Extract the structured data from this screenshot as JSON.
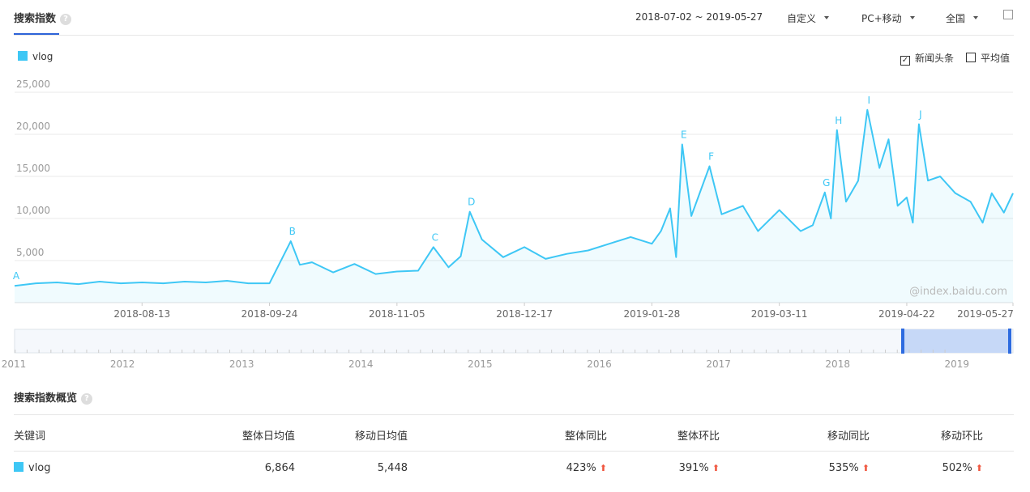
{
  "header": {
    "tab": "搜索指数",
    "date_range": "2018-07-02 ~ 2019-05-27",
    "mode": "自定义",
    "device": "PC+移动",
    "region": "全国"
  },
  "options": {
    "news": "新闻头条",
    "average": "平均值"
  },
  "chart_data": {
    "type": "line",
    "x": [
      "2018-07-02",
      "2018-07-09",
      "2018-07-16",
      "2018-07-23",
      "2018-07-30",
      "2018-08-06",
      "2018-08-13",
      "2018-08-20",
      "2018-08-27",
      "2018-09-03",
      "2018-09-10",
      "2018-09-17",
      "2018-09-24",
      "2018-10-01",
      "2018-10-04",
      "2018-10-08",
      "2018-10-15",
      "2018-10-22",
      "2018-10-29",
      "2018-11-05",
      "2018-11-12",
      "2018-11-17",
      "2018-11-22",
      "2018-11-26",
      "2018-11-29",
      "2018-12-03",
      "2018-12-10",
      "2018-12-17",
      "2018-12-24",
      "2018-12-31",
      "2019-01-07",
      "2019-01-14",
      "2019-01-21",
      "2019-01-28",
      "2019-01-31",
      "2019-02-03",
      "2019-02-05",
      "2019-02-07",
      "2019-02-10",
      "2019-02-16",
      "2019-02-20",
      "2019-02-27",
      "2019-03-04",
      "2019-03-11",
      "2019-03-18",
      "2019-03-22",
      "2019-03-26",
      "2019-03-28",
      "2019-03-30",
      "2019-04-02",
      "2019-04-06",
      "2019-04-09",
      "2019-04-13",
      "2019-04-16",
      "2019-04-19",
      "2019-04-22",
      "2019-04-24",
      "2019-04-26",
      "2019-04-29",
      "2019-05-03",
      "2019-05-08",
      "2019-05-13",
      "2019-05-17",
      "2019-05-20",
      "2019-05-24",
      "2019-05-27"
    ],
    "series": [
      {
        "name": "vlog",
        "color": "#3ec7f5",
        "values": [
          2000,
          2300,
          2400,
          2200,
          2500,
          2300,
          2400,
          2300,
          2500,
          2400,
          2600,
          2300,
          2300,
          7300,
          4500,
          4800,
          3600,
          4600,
          3400,
          3700,
          3800,
          6600,
          4200,
          5500,
          10800,
          7500,
          5400,
          6600,
          5200,
          5800,
          6200,
          7000,
          7800,
          7000,
          8500,
          11200,
          5400,
          18800,
          10300,
          16200,
          10500,
          11500,
          8500,
          11000,
          8500,
          9200,
          13100,
          10000,
          20500,
          12000,
          14500,
          22900,
          16000,
          19400,
          11500,
          12500,
          9500,
          21200,
          14500,
          15000,
          13000,
          12000,
          9500,
          13000,
          10700,
          13000
        ]
      }
    ],
    "xlim": [
      "2018-07-02",
      "2019-05-27"
    ],
    "xticks": [
      "2018-08-13",
      "2018-09-24",
      "2018-11-05",
      "2018-12-17",
      "2019-01-28",
      "2019-03-11",
      "2019-04-22",
      "2019-05-27"
    ],
    "ylim": [
      0,
      25000
    ],
    "yticks": [
      {
        "value": 5000,
        "label": "5,000"
      },
      {
        "value": 10000,
        "label": "10,000"
      },
      {
        "value": 15000,
        "label": "15,000"
      },
      {
        "value": 20000,
        "label": "20,000"
      },
      {
        "value": 25000,
        "label": "25,000"
      }
    ],
    "grid": true,
    "annotations": [
      {
        "label": "A",
        "x": "2018-07-02",
        "value": 2000
      },
      {
        "label": "B",
        "x": "2018-10-01",
        "value": 7300
      },
      {
        "label": "C",
        "x": "2018-11-17",
        "value": 6600
      },
      {
        "label": "D",
        "x": "2018-11-29",
        "value": 10800
      },
      {
        "label": "E",
        "x": "2019-02-07",
        "value": 18800
      },
      {
        "label": "F",
        "x": "2019-02-16",
        "value": 16200
      },
      {
        "label": "G",
        "x": "2019-03-26",
        "value": 13100
      },
      {
        "label": "H",
        "x": "2019-03-30",
        "value": 20500
      },
      {
        "label": "I",
        "x": "2019-04-09",
        "value": 22900
      },
      {
        "label": "J",
        "x": "2019-04-26",
        "value": 21200
      }
    ],
    "watermark": "@index.baidu.com",
    "navigator_years": [
      2011,
      2012,
      2013,
      2014,
      2015,
      2016,
      2017,
      2018,
      2019
    ]
  },
  "overview": {
    "title": "搜索指数概览",
    "columns": [
      "关键词",
      "整体日均值",
      "移动日均值",
      "整体同比",
      "整体环比",
      "移动同比",
      "移动环比"
    ],
    "row": [
      "vlog",
      "6,864",
      "5,448",
      "423%",
      "391%",
      "535%",
      "502%"
    ]
  }
}
